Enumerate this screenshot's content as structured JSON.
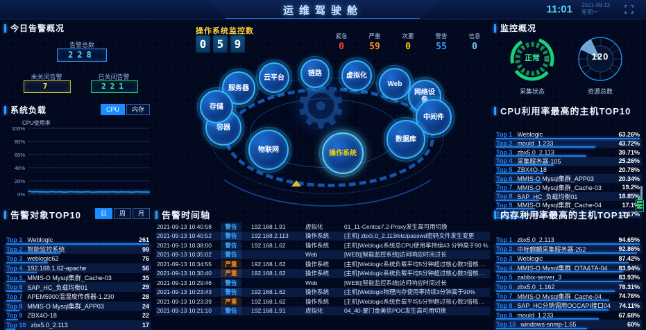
{
  "header": {
    "title": "运维驾驶舱",
    "time": "11:01",
    "date": "2021-09-13",
    "weekday": "星期一"
  },
  "alert_overview": {
    "title": "今日告警概况",
    "total_label": "告警总数",
    "total": "228",
    "open_label": "未关闭告警",
    "open": "7",
    "closed_label": "已关闭告警",
    "closed": "221"
  },
  "system_load": {
    "title": "系统负载",
    "tabs": [
      "CPU",
      "内存"
    ],
    "active_tab": "CPU",
    "ylabel": "CPU使用率",
    "yticks": [
      "100%",
      "80%",
      "60%",
      "40%",
      "20%",
      "0%"
    ],
    "chart": {
      "type": "line",
      "ylim": [
        0,
        100
      ],
      "values": [
        4.6,
        3.8,
        3.4,
        3.9,
        3.3,
        3.6,
        3.1,
        3.5,
        3.8,
        3.2,
        3.6,
        3.3,
        3.0,
        3.4,
        3.7,
        3.2,
        3.5,
        3.1,
        3.4,
        3.6,
        3.2,
        3.0,
        3.3,
        3.5,
        3.1,
        3.4,
        3.2,
        3.6,
        3.3,
        3.1,
        3.5,
        3.2,
        3.4,
        3.0,
        3.3,
        3.6,
        3.2,
        3.4,
        3.1,
        3.3
      ]
    }
  },
  "alert_objects": {
    "title": "告警对象TOP10",
    "tabs": [
      "日",
      "周",
      "月"
    ],
    "active_tab": "日",
    "rows": [
      {
        "rank": "Top 1",
        "name": "Weblogic",
        "value": "261"
      },
      {
        "rank": "Top 2",
        "name": "智能监控系统",
        "value": "99"
      },
      {
        "rank": "Top 3",
        "name": "weblogic62",
        "value": "76"
      },
      {
        "rank": "Top 4",
        "name": "192.168.1.62-apache",
        "value": "56"
      },
      {
        "rank": "Top 5",
        "name": "MMIS-O Mysql集群_Cache-03",
        "value": "35"
      },
      {
        "rank": "Top 6",
        "name": "SAP_HC_负载均衡01",
        "value": "29"
      },
      {
        "rank": "Top 7",
        "name": "APEM5900温湿度传感器-1.230",
        "value": "28"
      },
      {
        "rank": "Top 8",
        "name": "MMIS-O Mysql集群_APP03",
        "value": "24"
      },
      {
        "rank": "Top 9",
        "name": "ZBX4O-18",
        "value": "22"
      },
      {
        "rank": "Top 10",
        "name": "zbx5.0_2.113",
        "value": "17"
      }
    ]
  },
  "os_monitor": {
    "label": "操作系统监控数",
    "digits": [
      "0",
      "5",
      "9"
    ],
    "severities": [
      {
        "label": "紧急",
        "value": "0",
        "color": "#ff4136"
      },
      {
        "label": "严重",
        "value": "59",
        "color": "#ff8c1a"
      },
      {
        "label": "次要",
        "value": "0",
        "color": "#ffc400"
      },
      {
        "label": "警告",
        "value": "55",
        "color": "#2f9bff"
      },
      {
        "label": "信息",
        "value": "0",
        "color": "#6ec6ff"
      }
    ]
  },
  "topology": {
    "selected": "操作系统",
    "nodes": [
      {
        "label": "服务器"
      },
      {
        "label": "云平台"
      },
      {
        "label": "链路"
      },
      {
        "label": "虚拟化"
      },
      {
        "label": "Web"
      },
      {
        "label": "网络设备"
      },
      {
        "label": "中间件"
      },
      {
        "label": "数据库"
      },
      {
        "label": "操作系统"
      },
      {
        "label": "物联网"
      },
      {
        "label": "容器"
      },
      {
        "label": "存储"
      }
    ]
  },
  "timeline": {
    "title": "告警时间轴",
    "rows": [
      {
        "time": "2021-09-13 10:40:58",
        "severity": "警告",
        "ip": "192.168.1.91",
        "category": "虚拟化",
        "desc": "01_11-Centos7.2-Proxy发生高可用切换"
      },
      {
        "time": "2021-09-13 10:40:52",
        "severity": "警告",
        "ip": "192.168.2.113",
        "category": "操作系统",
        "desc": "[主机] zbx5.0_2.113/etc/passwd密码文件发生变更"
      },
      {
        "time": "2021-09-13 10:38:00",
        "severity": "警告",
        "ip": "192.168.1.62",
        "category": "操作系统",
        "desc": "[主机]Weblogic系统总CPU使用率持续#3 分钟高于90 %"
      },
      {
        "time": "2021-09-13 10:35:02",
        "severity": "警告",
        "ip": "",
        "category": "Web",
        "desc": "[WEB][智能监控系统]访问响应时间过长"
      },
      {
        "time": "2021-09-13 10:34:55",
        "severity": "严重",
        "ip": "192.168.1.62",
        "category": "操作系统",
        "desc": "[主机]Weblogic系统负载平均5分钟超过核心数3倍核心数，系统负载过高"
      },
      {
        "time": "2021-09-13 10:30:40",
        "severity": "严重",
        "ip": "192.168.1.62",
        "category": "操作系统",
        "desc": "[主机]Weblogic系统负载平均5分钟超过核心数3倍核心数，系统负载过高"
      },
      {
        "time": "2021-09-13 10:29:46",
        "severity": "警告",
        "ip": "",
        "category": "Web",
        "desc": "[WEB][智能监控系统]访问响应时间过长"
      },
      {
        "time": "2021-09-13 10:23:43",
        "severity": "警告",
        "ip": "192.168.1.62",
        "category": "操作系统",
        "desc": "[主机]Weblogic物理内存使用率持续3分钟高于90%"
      },
      {
        "time": "2021-09-13 10:23:39",
        "severity": "严重",
        "ip": "192.168.1.62",
        "category": "操作系统",
        "desc": "[主机]Weblogic系统负载平均5分钟超过核心数3倍核心数，系统负载过高"
      },
      {
        "time": "2021-09-13 10:21:10",
        "severity": "警告",
        "ip": "192.168.1.91",
        "category": "虚拟化",
        "desc": "04_40-厦门金美信POC发生高可用切换"
      }
    ]
  },
  "monitor_overview": {
    "title": "监控概况",
    "collect_status": "正常",
    "collect_label": "采集状态",
    "resource_total": "120",
    "resource_label": "资源总数",
    "status_color": "#2ef092"
  },
  "cpu_top": {
    "title": "CPU利用率最高的主机TOP10",
    "rows": [
      {
        "rank": "Top 1",
        "name": "Weblogic",
        "value": "63.26%"
      },
      {
        "rank": "Top 2",
        "name": "mould_1.233",
        "value": "43.72%"
      },
      {
        "rank": "Top 3",
        "name": "zbx5.0_2.113",
        "value": "39.71%"
      },
      {
        "rank": "Top 4",
        "name": "采集服务器-105",
        "value": "25.26%"
      },
      {
        "rank": "Top 5",
        "name": "ZBX4O-18",
        "value": "20.78%"
      },
      {
        "rank": "Top 6",
        "name": "MMIS-O Mysql集群_APP03",
        "value": "20.34%"
      },
      {
        "rank": "Top 7",
        "name": "MMIS-O Mysql集群_Cache-03",
        "value": "19.2%"
      },
      {
        "rank": "Top 8",
        "name": "SAP_HC_负载均衡01",
        "value": "18.85%"
      },
      {
        "rank": "Top 9",
        "name": "MMIS-O Mysql集群_Cache-04",
        "value": "17.1%"
      },
      {
        "rank": "Top 10",
        "name": "zbx5.0_2.113",
        "value": "13.17%"
      }
    ]
  },
  "mem_top": {
    "title": "内存利用率最高的主机TOP10",
    "rows": [
      {
        "rank": "Top 1",
        "name": "zbx5.0_2.113",
        "value": "94.65%"
      },
      {
        "rank": "Top 2",
        "name": "中标麒麟采集服务器-252",
        "value": "92.86%"
      },
      {
        "rank": "Top 3",
        "name": "Weblogic",
        "value": "87.42%"
      },
      {
        "rank": "Top 4",
        "name": "MMIS-O Mysql集群_OTA&TA-04",
        "value": "83.94%"
      },
      {
        "rank": "Top 5",
        "name": "zabbix-server_3",
        "value": "83.93%"
      },
      {
        "rank": "Top 6",
        "name": "zbx5.0_1.162",
        "value": "78.31%"
      },
      {
        "rank": "Top 7",
        "name": "MMIS-O Mysql集群_Cache-04",
        "value": "74.76%"
      },
      {
        "rank": "Top 8",
        "name": "SAP_HC分销调用OCCAPI接口04",
        "value": "74.11%"
      },
      {
        "rank": "Top 9",
        "name": "mould_1.233",
        "value": "67.68%"
      },
      {
        "rank": "Top 10",
        "name": "windows-snmp-1.65",
        "value": "60%"
      }
    ]
  },
  "colors": {
    "accent": "#2f9bff",
    "bar": "#1f7fe8",
    "gauge_green": "#17d07c"
  }
}
